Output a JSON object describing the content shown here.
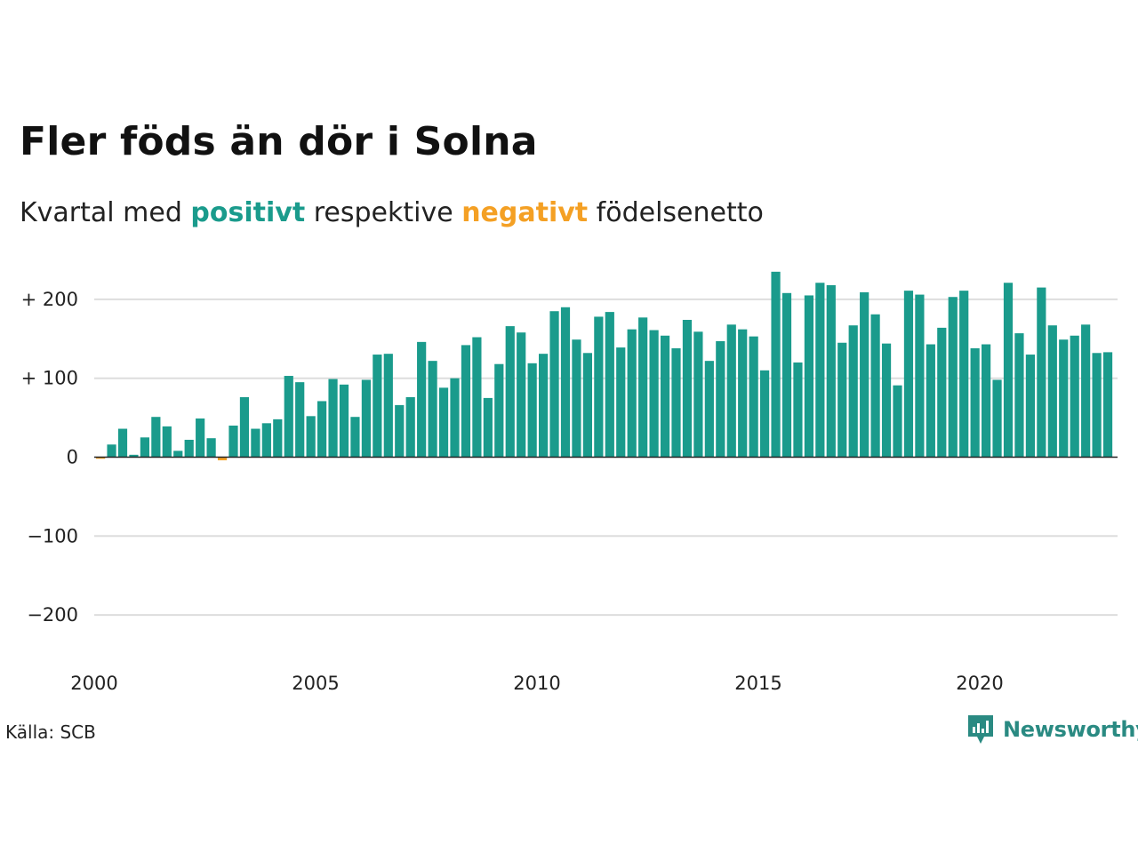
{
  "title": "Fler föds än dör i Solna",
  "subtitle": {
    "prefix": "Kvartal med ",
    "positive_word": "positivt",
    "middle": " respektive ",
    "negative_word": "negativt",
    "suffix": " födelsenetto"
  },
  "source": "Källa: SCB",
  "brand": {
    "name": "Newsworthy"
  },
  "colors": {
    "positive": "#1a9b8c",
    "negative": "#f4a024",
    "grid": "#dddddd",
    "zero_line": "#222222",
    "brand": "#2a8a82"
  },
  "chart_data": {
    "type": "bar",
    "x_unit": "quarter",
    "start": "2000 Q1",
    "y_tick_labels": [
      "+ 200",
      "+ 100",
      "0",
      "−100",
      "−200"
    ],
    "y_ticks": [
      200,
      100,
      0,
      -100,
      -200
    ],
    "x_tick_labels": [
      "2000",
      "2005",
      "2010",
      "2015",
      "2020"
    ],
    "ylim": [
      -230,
      245
    ],
    "grid": true,
    "values": [
      -2,
      16,
      36,
      3,
      25,
      51,
      39,
      8,
      22,
      49,
      24,
      -4,
      40,
      76,
      36,
      43,
      48,
      103,
      95,
      52,
      71,
      99,
      92,
      51,
      98,
      130,
      131,
      66,
      76,
      146,
      122,
      88,
      100,
      142,
      152,
      75,
      118,
      166,
      158,
      119,
      131,
      185,
      190,
      149,
      132,
      178,
      184,
      139,
      162,
      177,
      161,
      154,
      138,
      174,
      159,
      122,
      147,
      168,
      162,
      153,
      110,
      235,
      208,
      120,
      205,
      221,
      218,
      145,
      167,
      209,
      181,
      144,
      91,
      211,
      206,
      143,
      164,
      203,
      211,
      138,
      143,
      98,
      221,
      157,
      130,
      215,
      167,
      149,
      154,
      168,
      132,
      133
    ]
  }
}
